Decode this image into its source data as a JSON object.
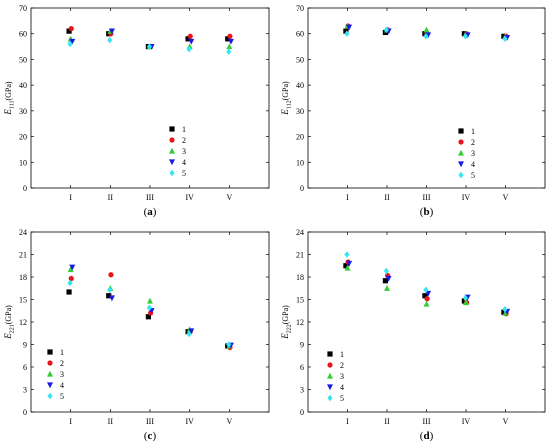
{
  "figure": {
    "marker_colors": [
      "#000000",
      "#e8141c",
      "#33cc33",
      "#1a1ae6",
      "#33e6f0"
    ],
    "marker_shapes": [
      "square",
      "circle",
      "triangle-up",
      "triangle-down",
      "diamond"
    ]
  },
  "chart_data": [
    {
      "type": "scatter",
      "caption_open": "(",
      "caption_letter": "a",
      "caption_close": ")",
      "ylabel_main": "E",
      "ylabel_sub": "111",
      "ylabel_unit": "(GPa)",
      "ylim": [
        0,
        70
      ],
      "yticks": [
        "0",
        "10",
        "20",
        "30",
        "40",
        "50",
        "60",
        "70"
      ],
      "categories": [
        "I",
        "II",
        "III",
        "IV",
        "V"
      ],
      "legend_position": "lower-center",
      "series": [
        {
          "name": "1",
          "values": [
            61,
            60,
            55,
            58,
            58
          ]
        },
        {
          "name": "2",
          "values": [
            62,
            60,
            55,
            59,
            59
          ]
        },
        {
          "name": "3",
          "values": [
            58,
            61,
            55,
            55,
            55
          ]
        },
        {
          "name": "4",
          "values": [
            57,
            61,
            55,
            57,
            57
          ]
        },
        {
          "name": "5",
          "values": [
            56,
            57.5,
            55,
            54,
            53
          ]
        }
      ]
    },
    {
      "type": "scatter",
      "caption_open": "(",
      "caption_letter": "b",
      "caption_close": ")",
      "ylabel_main": "E",
      "ylabel_sub": "112",
      "ylabel_unit": "(GPa)",
      "ylim": [
        0,
        70
      ],
      "yticks": [
        "0",
        "10",
        "20",
        "30",
        "40",
        "50",
        "60",
        "70"
      ],
      "categories": [
        "I",
        "II",
        "III",
        "IV",
        "V"
      ],
      "legend_position": "lower-right",
      "series": [
        {
          "name": "1",
          "values": [
            61,
            60.5,
            60,
            60,
            59
          ]
        },
        {
          "name": "2",
          "values": [
            63,
            61.5,
            60,
            60,
            59
          ]
        },
        {
          "name": "3",
          "values": [
            63,
            61.5,
            61.5,
            60,
            59
          ]
        },
        {
          "name": "4",
          "values": [
            62.5,
            61,
            59.5,
            59.5,
            58.5
          ]
        },
        {
          "name": "5",
          "values": [
            60,
            61.5,
            59,
            59,
            58
          ]
        }
      ]
    },
    {
      "type": "scatter",
      "caption_open": "(",
      "caption_letter": "c",
      "caption_close": ")",
      "ylabel_main": "E",
      "ylabel_sub": "221",
      "ylabel_unit": "(GPa)",
      "ylim": [
        0,
        24
      ],
      "yticks": [
        "0",
        "3",
        "6",
        "9",
        "12",
        "15",
        "18",
        "21",
        "24"
      ],
      "categories": [
        "I",
        "II",
        "III",
        "IV",
        "V"
      ],
      "legend_position": "lower-left",
      "series": [
        {
          "name": "1",
          "values": [
            16,
            15.5,
            12.7,
            10.7,
            8.8
          ]
        },
        {
          "name": "2",
          "values": [
            17.8,
            18.3,
            13.2,
            10.7,
            8.6
          ]
        },
        {
          "name": "3",
          "values": [
            19,
            16.5,
            14.8,
            11,
            8.8
          ]
        },
        {
          "name": "4",
          "values": [
            19.3,
            15.2,
            13.5,
            10.8,
            8.9
          ]
        },
        {
          "name": "5",
          "values": [
            17.2,
            16.3,
            13.9,
            10.4,
            9
          ]
        }
      ]
    },
    {
      "type": "scatter",
      "caption_open": "(",
      "caption_letter": "d",
      "caption_close": ")",
      "ylabel_main": "E",
      "ylabel_sub": "222",
      "ylabel_unit": "(GPa)",
      "ylim": [
        0,
        24
      ],
      "yticks": [
        "0",
        "3",
        "6",
        "9",
        "12",
        "15",
        "18",
        "21",
        "24"
      ],
      "categories": [
        "I",
        "II",
        "III",
        "IV",
        "V"
      ],
      "legend_position": "lower-left",
      "series": [
        {
          "name": "1",
          "values": [
            19.5,
            17.5,
            15.5,
            14.8,
            13.3
          ]
        },
        {
          "name": "2",
          "values": [
            20,
            18.2,
            15.1,
            14.6,
            13.1
          ]
        },
        {
          "name": "3",
          "values": [
            19.2,
            16.5,
            14.4,
            14.6,
            13.2
          ]
        },
        {
          "name": "4",
          "values": [
            19.8,
            17.8,
            15.8,
            15.3,
            13.4
          ]
        },
        {
          "name": "5",
          "values": [
            21,
            18.8,
            16.3,
            15.2,
            13.7
          ]
        }
      ]
    }
  ]
}
